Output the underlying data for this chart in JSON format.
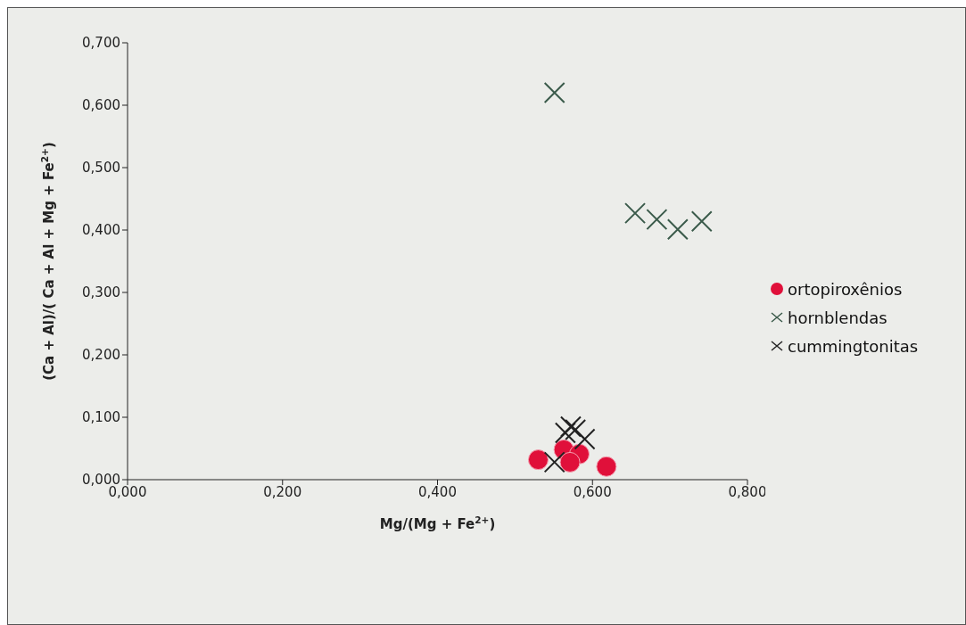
{
  "chart_data": {
    "type": "scatter",
    "xlabel": "Mg/(Mg + Fe$^{2+}$)",
    "ylabel": "(Ca + Al)/( Ca + Al + Mg + Fe$^{2+}$)",
    "xlim": [
      0,
      0.8
    ],
    "ylim": [
      0,
      0.7
    ],
    "xticks": [
      {
        "value": 0,
        "label": "0,000"
      },
      {
        "value": 0.2,
        "label": "0,200"
      },
      {
        "value": 0.4,
        "label": "0,400"
      },
      {
        "value": 0.6,
        "label": "0,600"
      },
      {
        "value": 0.8,
        "label": "0,800"
      }
    ],
    "yticks": [
      {
        "value": 0,
        "label": "0,000"
      },
      {
        "value": 0.1,
        "label": "0,100"
      },
      {
        "value": 0.2,
        "label": "0,200"
      },
      {
        "value": 0.3,
        "label": "0,300"
      },
      {
        "value": 0.4,
        "label": "0,400"
      },
      {
        "value": 0.5,
        "label": "0,500"
      },
      {
        "value": 0.6,
        "label": "0,600"
      },
      {
        "value": 0.7,
        "label": "0,700"
      }
    ],
    "grid": false,
    "legend": "right",
    "series": [
      {
        "name": "ortopiroxênios",
        "color": "#e0103a",
        "marker": "circle",
        "x": [
          0.53,
          0.563,
          0.583,
          0.571,
          0.618
        ],
        "values": [
          0.032,
          0.048,
          0.041,
          0.028,
          0.021
        ]
      },
      {
        "name": "hornblendas",
        "color": "#3a5a4a",
        "marker": "cross",
        "x": [
          0.551,
          0.655,
          0.683,
          0.71,
          0.741
        ],
        "values": [
          0.62,
          0.427,
          0.417,
          0.401,
          0.414
        ]
      },
      {
        "name": "cummingtonitas",
        "color": "#222222",
        "marker": "cross",
        "x": [
          0.551,
          0.565,
          0.572,
          0.578,
          0.59
        ],
        "values": [
          0.028,
          0.075,
          0.085,
          0.08,
          0.065
        ]
      }
    ]
  }
}
